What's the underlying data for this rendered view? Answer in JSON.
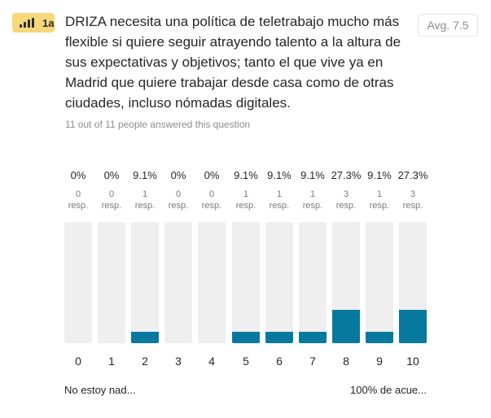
{
  "badge": {
    "label": "1a",
    "icon": "bar-chart-icon",
    "color": "#f6d77a"
  },
  "question": {
    "text": "DRIZA necesita una política de teletrabajo mucho más flexible si quiere seguir atrayendo talento a la altura de sus expectativas y objetivos; tanto el que vive ya en Madrid que quiere trabajar desde casa como de otras ciudades, incluso nómadas digitales."
  },
  "average": "Avg. 7.5",
  "answered": "11 out of 11 people answered this question",
  "scale": {
    "min_label": "No estoy nad...",
    "max_label": "100% de acue..."
  },
  "colors": {
    "bar_fill": "#08799e",
    "bar_track": "#efefef"
  },
  "chart_data": {
    "type": "bar",
    "categories": [
      "0",
      "1",
      "2",
      "3",
      "4",
      "5",
      "6",
      "7",
      "8",
      "9",
      "10"
    ],
    "values": [
      0,
      0,
      9.1,
      0,
      0,
      9.1,
      9.1,
      9.1,
      27.3,
      9.1,
      27.3
    ],
    "percent_labels": [
      "0%",
      "0%",
      "9.1%",
      "0%",
      "0%",
      "9.1%",
      "9.1%",
      "9.1%",
      "27.3%",
      "9.1%",
      "27.3%"
    ],
    "counts": [
      "0",
      "0",
      "1",
      "0",
      "0",
      "1",
      "1",
      "1",
      "3",
      "1",
      "3"
    ],
    "count_unit": "resp.",
    "ylim": [
      0,
      100
    ]
  }
}
